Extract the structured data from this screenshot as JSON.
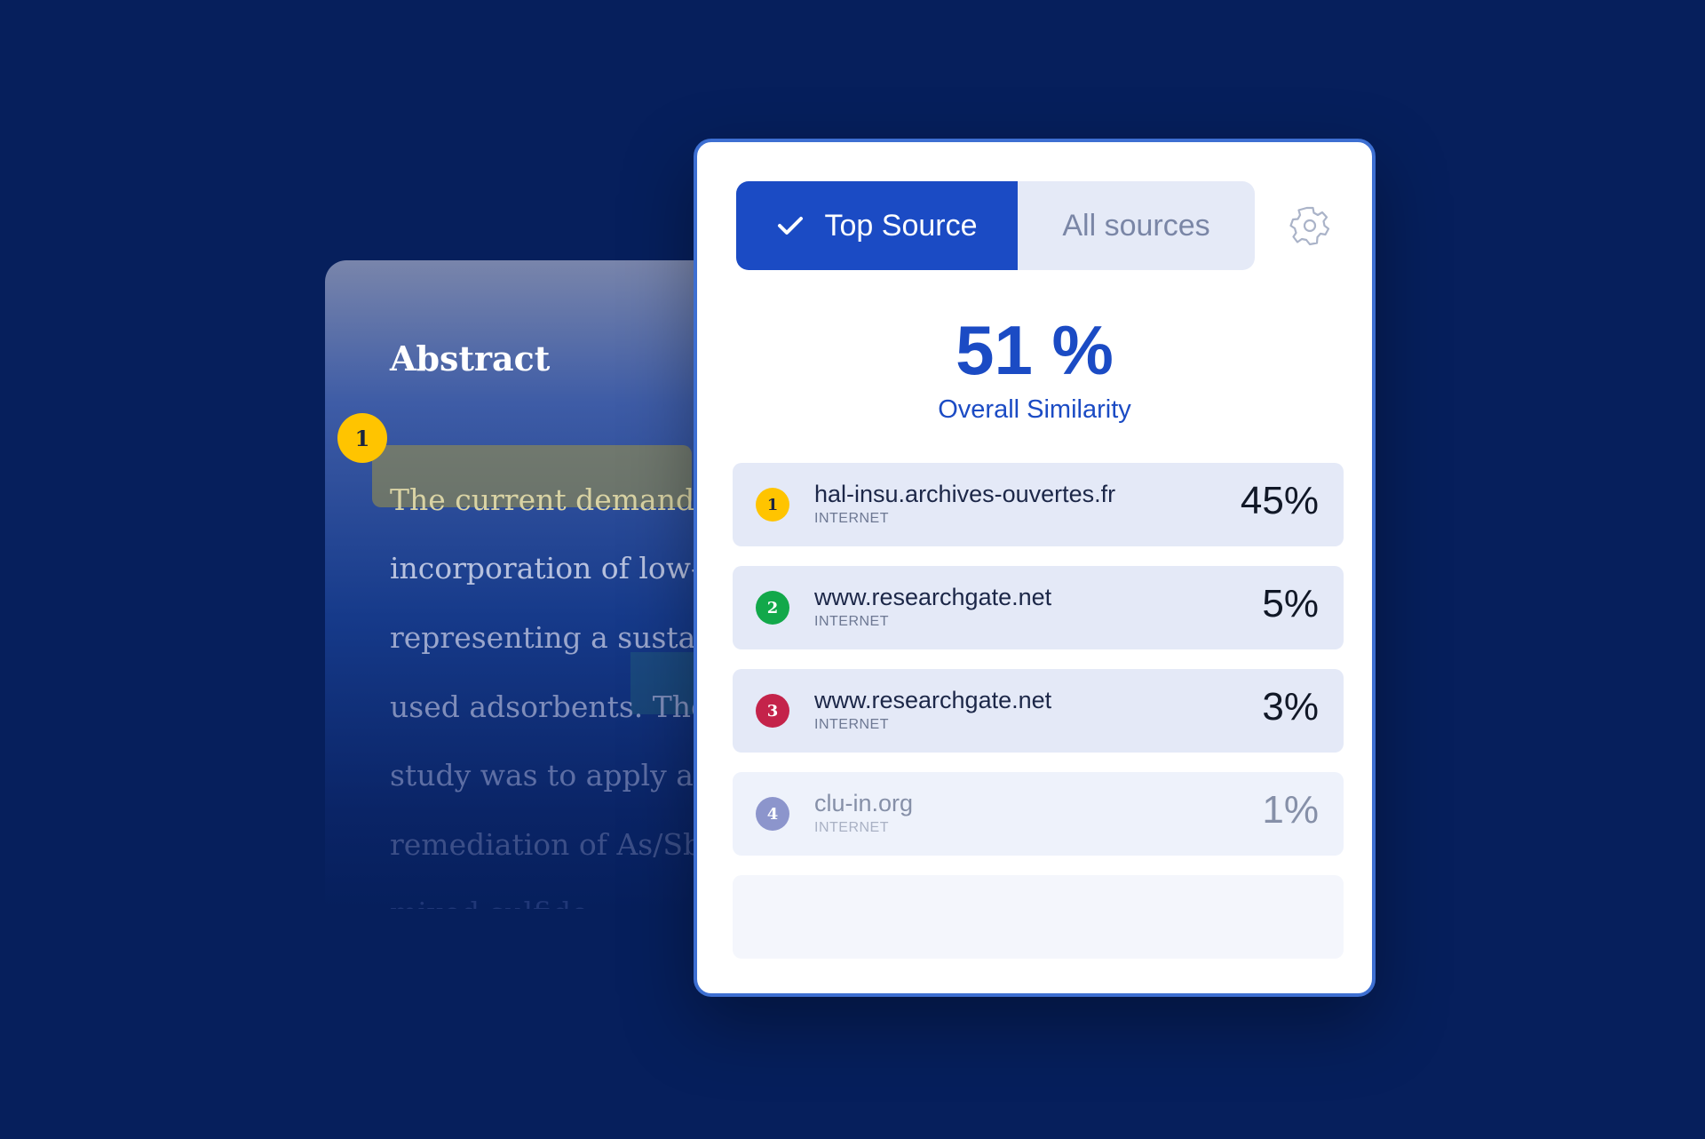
{
  "document": {
    "title": "Abstract",
    "badge": "1",
    "lines": [
      "The current demand f",
      "incorporation of low-c",
      "representing a sustai",
      "used adsorbents. The",
      "study was to apply an",
      "remediation of As/Sb",
      "mixed-sulfide"
    ],
    "highlight_colors": {
      "primary_match": "#a0963f",
      "secondary_match": "#286e78"
    }
  },
  "panel": {
    "tabs": {
      "top_source": "Top Source",
      "all_sources": "All sources"
    },
    "overall": {
      "value": "51 %",
      "label": "Overall Similarity"
    },
    "sources": [
      {
        "rank": "1",
        "name": "hal-insu.archives-ouvertes.fr",
        "type": "INTERNET",
        "percent": "45%",
        "color": "#ffc400"
      },
      {
        "rank": "2",
        "name": "www.researchgate.net",
        "type": "INTERNET",
        "percent": "5%",
        "color": "#12a84a"
      },
      {
        "rank": "3",
        "name": "www.researchgate.net",
        "type": "INTERNET",
        "percent": "3%",
        "color": "#c4234a"
      },
      {
        "rank": "4",
        "name": "clu-in.org",
        "type": "INTERNET",
        "percent": "1%",
        "color": "#8c95cc"
      }
    ],
    "accent_color": "#1b4bc4",
    "icons": {
      "tab_check": "check-icon",
      "settings": "gear-icon"
    }
  }
}
